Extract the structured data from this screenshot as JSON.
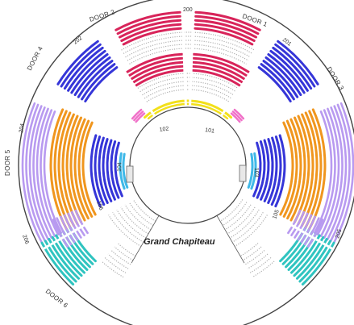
{
  "venue": {
    "title": "Grand Chapiteau"
  },
  "colors": {
    "red": "#d8245a",
    "blue": "#3535d8",
    "lavender": "#b89af0",
    "orange": "#f0961e",
    "teal": "#2fc4c0",
    "yellow": "#f2e01a",
    "pink": "#f070c8",
    "cyan": "#3fb8e8",
    "row_grey": "#b0b0b0",
    "ring": "#444444"
  },
  "doors": [
    {
      "label": "DOOR 2"
    },
    {
      "label": "DOOR 1"
    },
    {
      "label": "DOOR 3"
    },
    {
      "label": "DOOR 4"
    },
    {
      "label": "DOOR 5"
    },
    {
      "label": "DOOR 6"
    }
  ],
  "sections": [
    {
      "label": "200"
    },
    {
      "label": "201"
    },
    {
      "label": "202"
    },
    {
      "label": "204"
    },
    {
      "label": "205"
    },
    {
      "label": "206"
    },
    {
      "label": "102"
    },
    {
      "label": "101"
    },
    {
      "label": "104"
    },
    {
      "label": "103"
    },
    {
      "label": "106"
    },
    {
      "label": "105"
    }
  ]
}
